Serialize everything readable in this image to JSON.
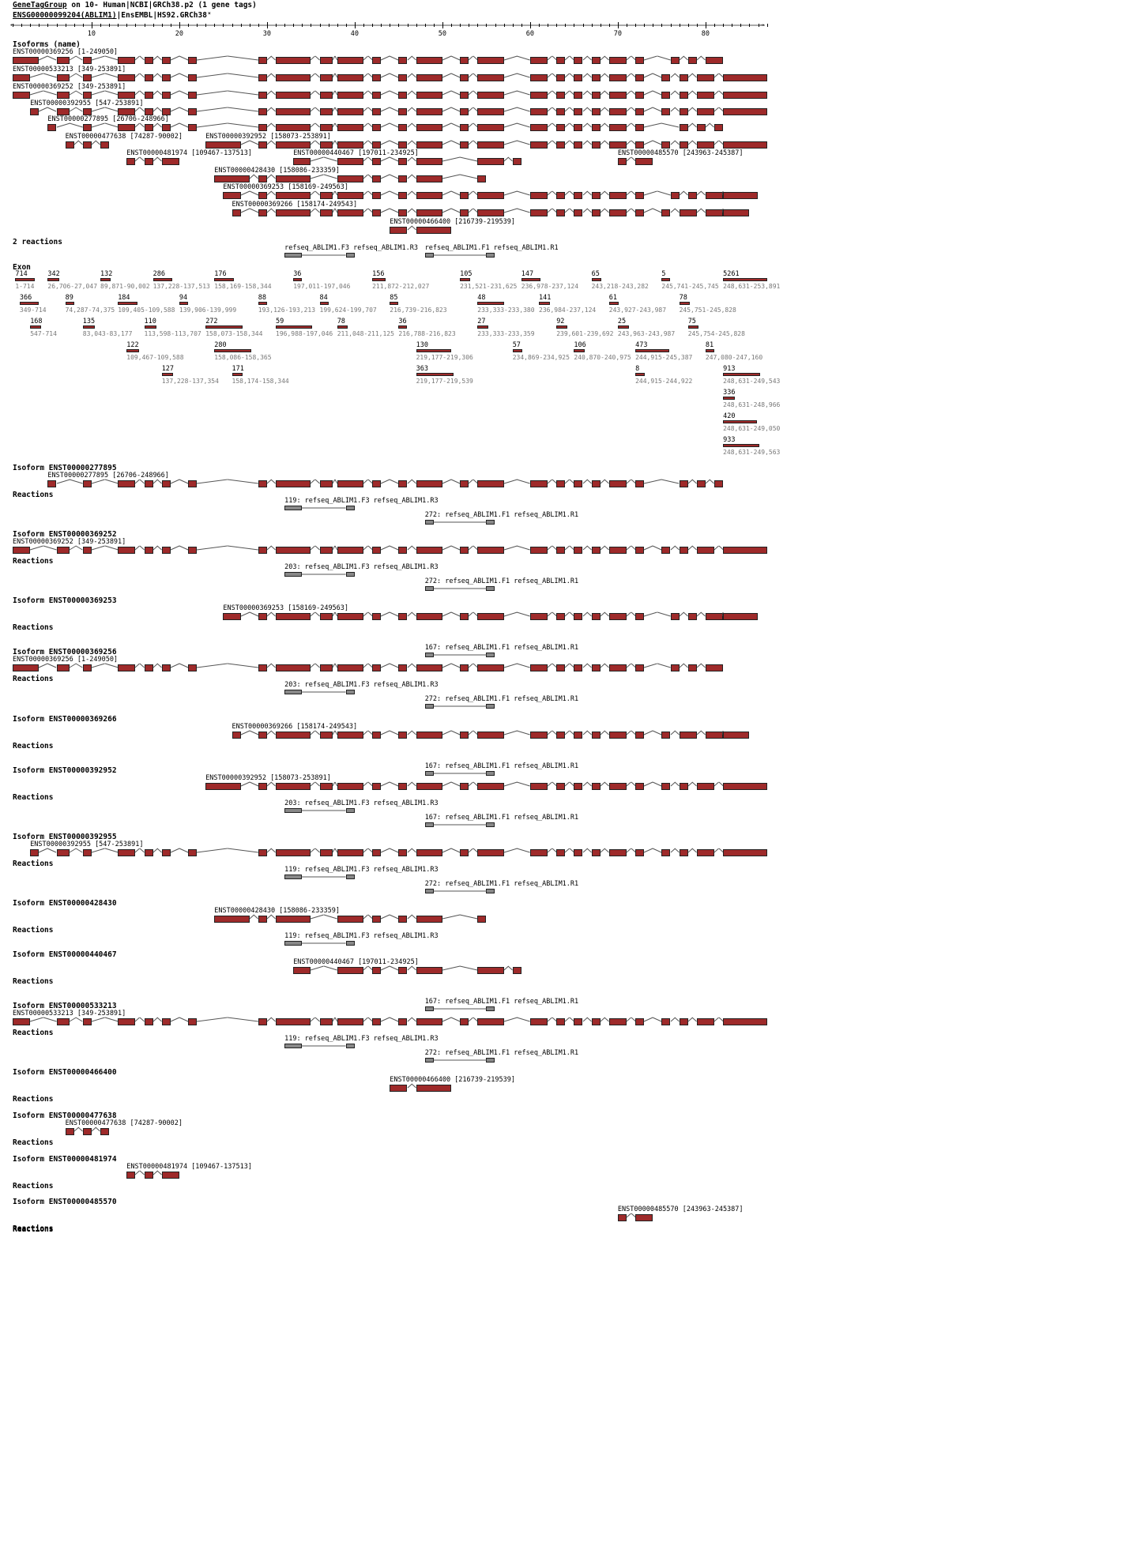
{
  "header": {
    "title_prefix": "GeneTagGroup",
    "title_rest": " on 10- Human|NCBI|GRCh38.p2 (1 gene tags)",
    "gene_link": "ENSG00000099204(ABLIM1)",
    "gene_rest": "|EnsEMBL|HS92.GRCh38",
    "close_glyph": "˟"
  },
  "ruler": {
    "ticks": [
      "10",
      "20",
      "30",
      "40",
      "50",
      "60",
      "70",
      "80"
    ]
  },
  "sections": {
    "isoforms_heading": "Isoforms (name)",
    "reactions_count": "2 reactions",
    "exon_heading": "Exon",
    "reactions_label": "Reactions"
  },
  "colors": {
    "exon": "#9e2a2a",
    "primer": "#888888",
    "intron": "#555555"
  },
  "isoforms": [
    {
      "label": "ENST00000369256 [1-249050]",
      "exons": [
        [
          1,
          4
        ],
        [
          6,
          7.5
        ],
        [
          9,
          10
        ],
        [
          13,
          15
        ],
        [
          16,
          17
        ],
        [
          18,
          19
        ],
        [
          21,
          22
        ],
        [
          29,
          30
        ],
        [
          31,
          35
        ],
        [
          36,
          37.5
        ],
        [
          38,
          41
        ],
        [
          42,
          43
        ],
        [
          45,
          46
        ],
        [
          47,
          50
        ],
        [
          52,
          53
        ],
        [
          54,
          57
        ],
        [
          60,
          62
        ],
        [
          63,
          64
        ],
        [
          65,
          66
        ],
        [
          67,
          68
        ],
        [
          69,
          71
        ],
        [
          72,
          73
        ],
        [
          76,
          77
        ],
        [
          78,
          79
        ],
        [
          80,
          82
        ]
      ]
    },
    {
      "label": "ENST00000533213 [349-253891]",
      "exons": [
        [
          1,
          3
        ],
        [
          6,
          7.5
        ],
        [
          9,
          10
        ],
        [
          13,
          15
        ],
        [
          16,
          17
        ],
        [
          18,
          19
        ],
        [
          21,
          22
        ],
        [
          29,
          30
        ],
        [
          31,
          35
        ],
        [
          36,
          37.5
        ],
        [
          38,
          41
        ],
        [
          42,
          43
        ],
        [
          45,
          46
        ],
        [
          47,
          50
        ],
        [
          52,
          53
        ],
        [
          54,
          57
        ],
        [
          60,
          62
        ],
        [
          63,
          64
        ],
        [
          65,
          66
        ],
        [
          67,
          68
        ],
        [
          69,
          71
        ],
        [
          72,
          73
        ],
        [
          75,
          76
        ],
        [
          77,
          78
        ],
        [
          79,
          81
        ],
        [
          82,
          87
        ]
      ]
    },
    {
      "label": "ENST00000369252 [349-253891]",
      "exons": [
        [
          1,
          3
        ],
        [
          6,
          7.5
        ],
        [
          9,
          10
        ],
        [
          13,
          15
        ],
        [
          16,
          17
        ],
        [
          18,
          19
        ],
        [
          21,
          22
        ],
        [
          29,
          30
        ],
        [
          31,
          35
        ],
        [
          36,
          37.5
        ],
        [
          38,
          41
        ],
        [
          42,
          43
        ],
        [
          45,
          46
        ],
        [
          47,
          50
        ],
        [
          52,
          53
        ],
        [
          54,
          57
        ],
        [
          60,
          62
        ],
        [
          63,
          64
        ],
        [
          65,
          66
        ],
        [
          67,
          68
        ],
        [
          69,
          71
        ],
        [
          72,
          73
        ],
        [
          75,
          76
        ],
        [
          77,
          78
        ],
        [
          79,
          81
        ],
        [
          82,
          87
        ]
      ]
    },
    {
      "label": "ENST00000392955 [547-253891]",
      "exons": [
        [
          3,
          4
        ],
        [
          6,
          7.5
        ],
        [
          9,
          10
        ],
        [
          13,
          15
        ],
        [
          16,
          17
        ],
        [
          18,
          19
        ],
        [
          21,
          22
        ],
        [
          29,
          30
        ],
        [
          31,
          35
        ],
        [
          36,
          37.5
        ],
        [
          38,
          41
        ],
        [
          42,
          43
        ],
        [
          45,
          46
        ],
        [
          47,
          50
        ],
        [
          52,
          53
        ],
        [
          54,
          57
        ],
        [
          60,
          62
        ],
        [
          63,
          64
        ],
        [
          65,
          66
        ],
        [
          67,
          68
        ],
        [
          69,
          71
        ],
        [
          72,
          73
        ],
        [
          75,
          76
        ],
        [
          77,
          78
        ],
        [
          79,
          81
        ],
        [
          82,
          87
        ]
      ]
    },
    {
      "label": "ENST00000277895 [26706-248966]",
      "exons": [
        [
          5,
          6
        ],
        [
          9,
          10
        ],
        [
          13,
          15
        ],
        [
          16,
          17
        ],
        [
          18,
          19
        ],
        [
          21,
          22
        ],
        [
          29,
          30
        ],
        [
          31,
          35
        ],
        [
          36,
          37.5
        ],
        [
          38,
          41
        ],
        [
          42,
          43
        ],
        [
          45,
          46
        ],
        [
          47,
          50
        ],
        [
          52,
          53
        ],
        [
          54,
          57
        ],
        [
          60,
          62
        ],
        [
          63,
          64
        ],
        [
          65,
          66
        ],
        [
          67,
          68
        ],
        [
          69,
          71
        ],
        [
          72,
          73
        ],
        [
          77,
          78
        ],
        [
          79,
          80
        ],
        [
          81,
          82
        ]
      ]
    },
    {
      "label": "ENST00000477638 [74287-90002]",
      "exons": [
        [
          7,
          8
        ],
        [
          9,
          10
        ],
        [
          11,
          12
        ]
      ]
    },
    {
      "label": "ENST00000392952 [158073-253891]",
      "exons": [
        [
          23,
          27
        ],
        [
          29,
          30
        ],
        [
          31,
          35
        ],
        [
          36,
          37.5
        ],
        [
          38,
          41
        ],
        [
          42,
          43
        ],
        [
          45,
          46
        ],
        [
          47,
          50
        ],
        [
          52,
          53
        ],
        [
          54,
          57
        ],
        [
          60,
          62
        ],
        [
          63,
          64
        ],
        [
          65,
          66
        ],
        [
          67,
          68
        ],
        [
          69,
          71
        ],
        [
          72,
          73
        ],
        [
          75,
          76
        ],
        [
          77,
          78
        ],
        [
          79,
          81
        ],
        [
          82,
          87
        ]
      ]
    },
    {
      "label": "ENST00000481974 [109467-137513]",
      "exons": [
        [
          14,
          15
        ],
        [
          16,
          17
        ],
        [
          18,
          20
        ]
      ]
    },
    {
      "label": "ENST00000440467 [197011-234925]",
      "exons": [
        [
          33,
          35
        ],
        [
          38,
          41
        ],
        [
          42,
          43
        ],
        [
          45,
          46
        ],
        [
          47,
          50
        ],
        [
          54,
          57
        ],
        [
          58,
          59
        ]
      ]
    },
    {
      "label": "ENST00000485570 [243963-245387]",
      "exons": [
        [
          70,
          71
        ],
        [
          72,
          74
        ]
      ]
    },
    {
      "label": "ENST00000428430 [158086-233359]",
      "exons": [
        [
          24,
          28
        ],
        [
          29,
          30
        ],
        [
          31,
          35
        ],
        [
          38,
          41
        ],
        [
          42,
          43
        ],
        [
          45,
          46
        ],
        [
          47,
          50
        ],
        [
          54,
          55
        ]
      ]
    },
    {
      "label": "ENST00000369253 [158169-249563]",
      "exons": [
        [
          25,
          27
        ],
        [
          29,
          30
        ],
        [
          31,
          35
        ],
        [
          36,
          37.5
        ],
        [
          38,
          41
        ],
        [
          42,
          43
        ],
        [
          45,
          46
        ],
        [
          47,
          50
        ],
        [
          52,
          53
        ],
        [
          54,
          57
        ],
        [
          60,
          62
        ],
        [
          63,
          64
        ],
        [
          65,
          66
        ],
        [
          67,
          68
        ],
        [
          69,
          71
        ],
        [
          72,
          73
        ],
        [
          76,
          77
        ],
        [
          78,
          79
        ],
        [
          80,
          82
        ],
        [
          82,
          86
        ]
      ]
    },
    {
      "label": "ENST00000369266 [158174-249543]",
      "exons": [
        [
          26,
          27
        ],
        [
          29,
          30
        ],
        [
          31,
          35
        ],
        [
          36,
          37.5
        ],
        [
          38,
          41
        ],
        [
          42,
          43
        ],
        [
          45,
          46
        ],
        [
          47,
          50
        ],
        [
          52,
          53
        ],
        [
          54,
          57
        ],
        [
          60,
          62
        ],
        [
          63,
          64
        ],
        [
          65,
          66
        ],
        [
          67,
          68
        ],
        [
          69,
          71
        ],
        [
          72,
          73
        ],
        [
          75,
          76
        ],
        [
          77,
          79
        ],
        [
          80,
          82
        ],
        [
          82,
          85
        ]
      ]
    },
    {
      "label": "ENST00000466400 [216739-219539]",
      "exons": [
        [
          44,
          46
        ],
        [
          47,
          51
        ]
      ]
    }
  ],
  "overview_primers": [
    {
      "label": "refseq_ABLIM1.F3 refseq_ABLIM1.R3",
      "a": [
        32,
        34
      ],
      "b": [
        39,
        40
      ]
    },
    {
      "label": "refseq_ABLIM1.F1 refseq_ABLIM1.R1",
      "a": [
        48,
        49
      ],
      "b": [
        55,
        56
      ]
    }
  ],
  "exons_table": [
    {
      "n": "714",
      "r": "1-714"
    },
    {
      "n": "342",
      "r": "26,706-27,047"
    },
    {
      "n": "132",
      "r": "89,871-90,002"
    },
    {
      "n": "286",
      "r": "137,228-137,513"
    },
    {
      "n": "176",
      "r": "158,169-158,344"
    },
    {
      "n": "36",
      "r": "197,011-197,046"
    },
    {
      "n": "156",
      "r": "211,872-212,027"
    },
    {
      "n": "105",
      "r": "231,521-231,625"
    },
    {
      "n": "147",
      "r": "236,978-237,124"
    },
    {
      "n": "65",
      "r": "243,218-243,282"
    },
    {
      "n": "5",
      "r": "245,741-245,745"
    },
    {
      "n": "5261",
      "r": "248,631-253,891"
    },
    {
      "n": "366",
      "r": "349-714"
    },
    {
      "n": "89",
      "r": "74,287-74,375"
    },
    {
      "n": "184",
      "r": "109,405-109,588"
    },
    {
      "n": "94",
      "r": "139,906-139,999"
    },
    {
      "n": "88",
      "r": "193,126-193,213"
    },
    {
      "n": "84",
      "r": "199,624-199,707"
    },
    {
      "n": "85",
      "r": "216,739-216,823"
    },
    {
      "n": "48",
      "r": "233,333-233,380"
    },
    {
      "n": "141",
      "r": "236,984-237,124"
    },
    {
      "n": "61",
      "r": "243,927-243,987"
    },
    {
      "n": "78",
      "r": "245,751-245,828"
    },
    {
      "n": "168",
      "r": "547-714"
    },
    {
      "n": "135",
      "r": "83,043-83,177"
    },
    {
      "n": "110",
      "r": "113,598-113,707"
    },
    {
      "n": "272",
      "r": "158,073-158,344"
    },
    {
      "n": "59",
      "r": "196,988-197,046"
    },
    {
      "n": "78",
      "r": "211,048-211,125"
    },
    {
      "n": "36",
      "r": "216,788-216,823"
    },
    {
      "n": "27",
      "r": "233,333-233,359"
    },
    {
      "n": "92",
      "r": "239,601-239,692"
    },
    {
      "n": "25",
      "r": "243,963-243,987"
    },
    {
      "n": "75",
      "r": "245,754-245,828"
    },
    {
      "n": "122",
      "r": "109,467-109,588"
    },
    {
      "n": "280",
      "r": "158,086-158,365"
    },
    {
      "n": "130",
      "r": "219,177-219,306"
    },
    {
      "n": "57",
      "r": "234,869-234,925"
    },
    {
      "n": "106",
      "r": "240,870-240,975"
    },
    {
      "n": "473",
      "r": "244,915-245,387"
    },
    {
      "n": "81",
      "r": "247,080-247,160"
    },
    {
      "n": "127",
      "r": "137,228-137,354"
    },
    {
      "n": "171",
      "r": "158,174-158,344"
    },
    {
      "n": "363",
      "r": "219,177-219,539"
    },
    {
      "n": "8",
      "r": "244,915-244,922"
    },
    {
      "n": "913",
      "r": "248,631-249,543"
    },
    {
      "n": "336",
      "r": "248,631-248,966"
    },
    {
      "n": "420",
      "r": "248,631-249,050"
    },
    {
      "n": "933",
      "r": "248,631-249,563"
    }
  ],
  "details": [
    {
      "title": "Isoform ENST00000277895",
      "iso": 4,
      "reactions": [
        {
          "label": "119: refseq_ABLIM1.F3 refseq_ABLIM1.R3",
          "p": 0
        },
        {
          "label": "272: refseq_ABLIM1.F1 refseq_ABLIM1.R1",
          "p": 1
        }
      ]
    },
    {
      "title": "Isoform ENST00000369252",
      "iso": 2,
      "reactions": [
        {
          "label": "203: refseq_ABLIM1.F3 refseq_ABLIM1.R3",
          "p": 0
        },
        {
          "label": "272: refseq_ABLIM1.F1 refseq_ABLIM1.R1",
          "p": 1
        }
      ]
    },
    {
      "title": "Isoform ENST00000369253",
      "iso": 11,
      "reactions": [
        {
          "label": "167: refseq_ABLIM1.F1 refseq_ABLIM1.R1",
          "p": 1
        }
      ]
    },
    {
      "title": "Isoform ENST00000369256",
      "iso": 0,
      "reactions": [
        {
          "label": "203: refseq_ABLIM1.F3 refseq_ABLIM1.R3",
          "p": 0
        },
        {
          "label": "272: refseq_ABLIM1.F1 refseq_ABLIM1.R1",
          "p": 1
        }
      ]
    },
    {
      "title": "Isoform ENST00000369266",
      "iso": 12,
      "reactions": [
        {
          "label": "167: refseq_ABLIM1.F1 refseq_ABLIM1.R1",
          "p": 1
        }
      ]
    },
    {
      "title": "Isoform ENST00000392952",
      "iso": 6,
      "reactions": [
        {
          "label": "203: refseq_ABLIM1.F3 refseq_ABLIM1.R3",
          "p": 0
        },
        {
          "label": "167: refseq_ABLIM1.F1 refseq_ABLIM1.R1",
          "p": 1
        }
      ]
    },
    {
      "title": "Isoform ENST00000392955",
      "iso": 3,
      "reactions": [
        {
          "label": "119: refseq_ABLIM1.F3 refseq_ABLIM1.R3",
          "p": 0
        },
        {
          "label": "272: refseq_ABLIM1.F1 refseq_ABLIM1.R1",
          "p": 1
        }
      ]
    },
    {
      "title": "Isoform ENST00000428430",
      "iso": 10,
      "reactions": [
        {
          "label": "119: refseq_ABLIM1.F3 refseq_ABLIM1.R3",
          "p": 0
        }
      ]
    },
    {
      "title": "Isoform ENST00000440467",
      "iso": 8,
      "reactions": [
        {
          "label": "167: refseq_ABLIM1.F1 refseq_ABLIM1.R1",
          "p": 1
        }
      ]
    },
    {
      "title": "Isoform ENST00000533213",
      "iso": 1,
      "reactions": [
        {
          "label": "119: refseq_ABLIM1.F3 refseq_ABLIM1.R3",
          "p": 0
        },
        {
          "label": "272: refseq_ABLIM1.F1 refseq_ABLIM1.R1",
          "p": 1
        }
      ]
    },
    {
      "title": "Isoform ENST00000466400",
      "iso": 13,
      "reactions": []
    },
    {
      "title": "Isoform ENST00000477638",
      "iso": 5,
      "reactions": []
    },
    {
      "title": "Isoform ENST00000481974",
      "iso": 7,
      "reactions": []
    },
    {
      "title": "Isoform ENST00000485570",
      "iso": 9,
      "reactions": []
    }
  ]
}
